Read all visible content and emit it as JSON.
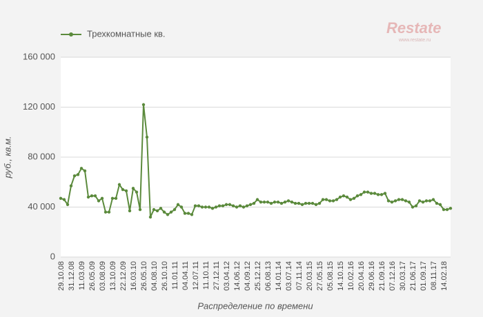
{
  "chart_data": {
    "type": "line",
    "legend_position": "top-left",
    "watermark": {
      "brand": "Restate",
      "url": "www.restate.ru"
    },
    "x_label": "Распределение по времени",
    "y_label": "руб., кв.м.",
    "grid": true,
    "ylim": [
      0,
      160000
    ],
    "yticks": [
      0,
      {
        "value": 40000,
        "label": "40 000"
      },
      {
        "value": 80000,
        "label": "80 000"
      },
      {
        "value": 120000,
        "label": "120 000"
      },
      {
        "value": 160000,
        "label": "160 000"
      }
    ],
    "categories": [
      "29.10.08",
      null,
      null,
      "31.12.08",
      null,
      null,
      "11.03.09",
      null,
      null,
      "26.05.09",
      null,
      null,
      "03.08.09",
      null,
      null,
      "13.10.09",
      null,
      null,
      "22.12.09",
      null,
      null,
      "16.03.10",
      null,
      null,
      "26.05.10",
      null,
      null,
      "04.08.10",
      null,
      null,
      "26.10.10",
      null,
      null,
      "11.01.11",
      null,
      null,
      "04.04.11",
      null,
      null,
      "12.07.11",
      null,
      null,
      "11.10.11",
      null,
      null,
      "27.12.11",
      null,
      null,
      "03.04.12",
      null,
      null,
      "14.06.12",
      null,
      null,
      "04.09.12",
      null,
      null,
      "25.12.12",
      null,
      null,
      "06.08.13",
      null,
      null,
      "14.01.14",
      null,
      null,
      "03.07.14",
      null,
      null,
      "07.11.14",
      null,
      null,
      "20.03.15",
      null,
      null,
      "27.05.15",
      null,
      null,
      "05.08.15",
      null,
      null,
      "14.10.15",
      null,
      null,
      "10.02.16",
      null,
      null,
      "20.04.16",
      null,
      null,
      "29.06.16",
      null,
      null,
      "21.09.16",
      null,
      null,
      "07.12.16",
      null,
      null,
      "30.03.17",
      null,
      null,
      "21.06.17",
      null,
      null,
      "01.09.17",
      null,
      null,
      "08.11.17",
      null,
      null,
      "14.02.18",
      null,
      null
    ],
    "series": [
      {
        "name": "Трехкомнатные кв.",
        "color": "#5b8a3c",
        "values": [
          47000,
          46000,
          42000,
          57000,
          65000,
          66000,
          71000,
          69000,
          48000,
          49000,
          49000,
          45000,
          47000,
          36000,
          36000,
          47000,
          47000,
          58000,
          54000,
          53000,
          37000,
          55000,
          52000,
          38000,
          122000,
          96000,
          32000,
          38000,
          37000,
          39000,
          36000,
          34000,
          36000,
          38000,
          42000,
          40000,
          35000,
          35000,
          34000,
          41000,
          41000,
          40000,
          40000,
          40000,
          39000,
          40000,
          41000,
          41000,
          42000,
          42000,
          41000,
          40000,
          41000,
          40000,
          41000,
          42000,
          43000,
          46000,
          44000,
          44000,
          44000,
          43000,
          44000,
          44000,
          43000,
          44000,
          45000,
          44000,
          43000,
          43000,
          42000,
          43000,
          43000,
          43000,
          42000,
          43000,
          46000,
          46000,
          45000,
          45000,
          46000,
          48000,
          49000,
          48000,
          46000,
          47000,
          49000,
          50000,
          52000,
          52000,
          51000,
          51000,
          50000,
          50000,
          51000,
          45000,
          44000,
          45000,
          46000,
          46000,
          45000,
          44000,
          40000,
          41000,
          45000,
          44000,
          45000,
          45000,
          46000,
          43000,
          42000,
          38000,
          38000,
          39000
        ]
      }
    ]
  }
}
